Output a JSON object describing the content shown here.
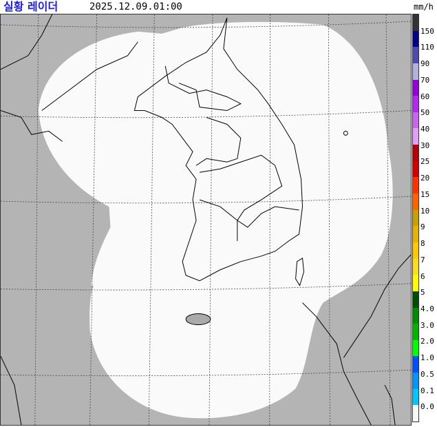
{
  "header": {
    "title": "실황 레이더",
    "timestamp": "2025.12.09.01:00",
    "unit": "mm/h"
  },
  "map": {
    "background_color": "#b4b4b4",
    "coverage_color": "#fafafa",
    "coastline_color": "#000000"
  },
  "legend": {
    "bins": [
      {
        "color": "#333333"
      },
      {
        "color": "#00008c"
      },
      {
        "color": "#4c4cb0"
      },
      {
        "color": "#b0b4dc"
      },
      {
        "color": "#9600dc"
      },
      {
        "color": "#b428f0"
      },
      {
        "color": "#c864f0"
      },
      {
        "color": "#e0a0f8"
      },
      {
        "color": "#b40000"
      },
      {
        "color": "#d20000"
      },
      {
        "color": "#ff3200"
      },
      {
        "color": "#ff6400"
      },
      {
        "color": "#c8a000"
      },
      {
        "color": "#e6b400"
      },
      {
        "color": "#ffc800"
      },
      {
        "color": "#ffdc1f"
      },
      {
        "color": "#ffff00"
      },
      {
        "color": "#004c00"
      },
      {
        "color": "#008c00"
      },
      {
        "color": "#00b400"
      },
      {
        "color": "#00ff00"
      },
      {
        "color": "#0050ff"
      },
      {
        "color": "#0096ff"
      },
      {
        "color": "#00c8ff"
      },
      {
        "color": "#f8f8f8"
      }
    ],
    "labels": [
      "150",
      "110",
      "90",
      "70",
      "60",
      "50",
      "40",
      "30",
      "25",
      "20",
      "15",
      "10",
      "9",
      "8",
      "7",
      "6",
      "5",
      "4.0",
      "3.0",
      "2.0",
      "1.0",
      "0.5",
      "0.1",
      "0.0"
    ]
  }
}
